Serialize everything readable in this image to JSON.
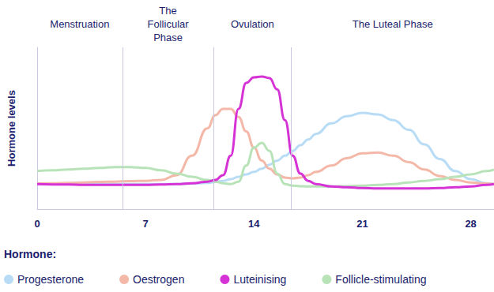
{
  "chart_data": {
    "type": "line",
    "y_label": "Hormone levels",
    "legend_title": "Hormone:",
    "legend": "bottom",
    "grid": false,
    "tick_labels": "x",
    "marker": "none",
    "xlim": [
      0,
      29.5
    ],
    "xticks": [
      0,
      7,
      14,
      21,
      28
    ],
    "ylim": [
      0,
      100
    ],
    "yticks": [],
    "phases": [
      {
        "label": "Menstruation",
        "start": 0,
        "end": 5.5
      },
      {
        "label": "The\nFollicular\nPhase",
        "start": 5.5,
        "end": 11.4
      },
      {
        "label": "Ovulation",
        "start": 11.4,
        "end": 16.4
      },
      {
        "label": "The Luteal Phase",
        "start": 16.4,
        "end": 29.5
      }
    ],
    "x": [
      0,
      1,
      2,
      3,
      4,
      5,
      6,
      7,
      8,
      9,
      10,
      11,
      11.5,
      12,
      12.5,
      13,
      13.5,
      14,
      14.5,
      15,
      15.5,
      16,
      16.5,
      17,
      17.5,
      18,
      19,
      20,
      21,
      22,
      23,
      24,
      25,
      26,
      27,
      28,
      29,
      29.5
    ],
    "series": [
      {
        "name": "Progesterone",
        "color": "#b8dcf5",
        "values": [
          15.5,
          15.5,
          15.5,
          15.5,
          15.5,
          15.5,
          15.5,
          15.5,
          15.5,
          15.5,
          15.8,
          16.2,
          16.8,
          17.5,
          18.5,
          20,
          21.5,
          23,
          25,
          27.5,
          30,
          33,
          36,
          39.5,
          43,
          46.5,
          53,
          57.5,
          59.5,
          58.5,
          55,
          49,
          40,
          31,
          23.5,
          18.5,
          16,
          15.5
        ]
      },
      {
        "name": "Oestrogen",
        "color": "#f4b8a8",
        "values": [
          15.8,
          16,
          16.2,
          16.5,
          16.8,
          17,
          17.3,
          17.5,
          18,
          21,
          33,
          50,
          58,
          62,
          62,
          57,
          48,
          38,
          30,
          25,
          21.5,
          19.5,
          19,
          19.5,
          21,
          23,
          27,
          31.5,
          34.5,
          35,
          33,
          29,
          24.5,
          20.5,
          18,
          16.5,
          15.8,
          15.5
        ]
      },
      {
        "name": "Luteinising",
        "color": "#d633d6",
        "values": [
          15.5,
          15.3,
          15.2,
          15,
          15,
          15,
          15,
          15,
          15.2,
          15.5,
          16,
          17,
          18,
          21,
          33,
          62,
          78,
          81.5,
          82,
          81,
          74,
          55,
          33,
          22,
          17.5,
          15.5,
          14,
          13.5,
          13,
          12.8,
          12.8,
          12.8,
          12.8,
          13,
          13.5,
          14,
          15,
          15.5
        ]
      },
      {
        "name": "Follicle-stimulating",
        "color": "#b8e3b8",
        "values": [
          23.5,
          24,
          24.5,
          25,
          25.5,
          26,
          26,
          25.5,
          24,
          22,
          20,
          18,
          17,
          16,
          15.5,
          17,
          27,
          38,
          41,
          36,
          22,
          15.5,
          14.5,
          14.2,
          14,
          14,
          14,
          14.2,
          14.5,
          15,
          15.5,
          16.5,
          17.5,
          18.5,
          20,
          21.5,
          23.5,
          24.5
        ]
      }
    ]
  }
}
